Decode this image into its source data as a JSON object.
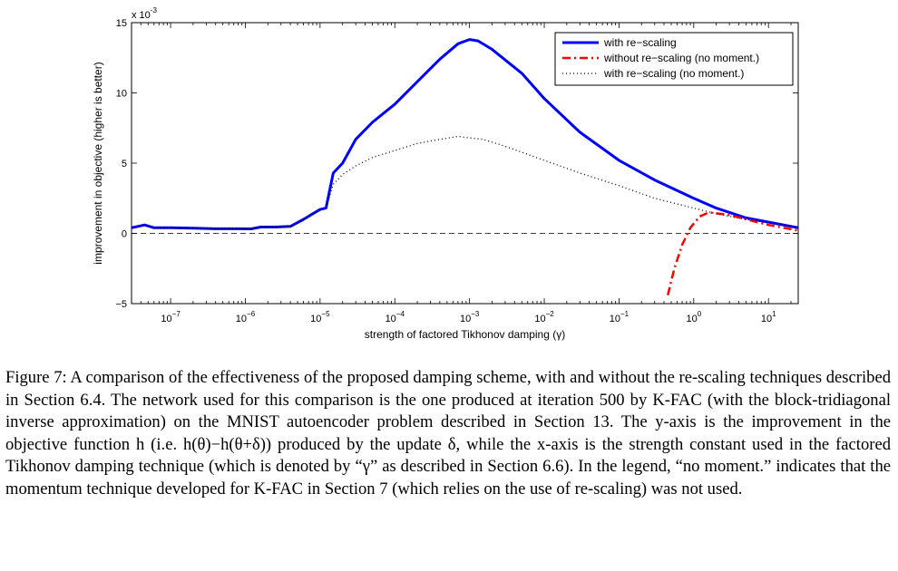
{
  "chart_data": {
    "type": "line",
    "title": "",
    "xlabel": "strength of factored Tikhonov damping (γ)",
    "ylabel": "improvement in objective (higher is better)",
    "x_scale": "log",
    "xlim": [
      3e-08,
      25
    ],
    "ylim": [
      -0.005,
      0.015
    ],
    "y_exponent_label": "x 10",
    "y_exponent_power": "-3",
    "x_ticks": [
      {
        "value": 1e-07,
        "base": "10",
        "exp": "−7"
      },
      {
        "value": 1e-06,
        "base": "10",
        "exp": "−6"
      },
      {
        "value": 1e-05,
        "base": "10",
        "exp": "−5"
      },
      {
        "value": 0.0001,
        "base": "10",
        "exp": "−4"
      },
      {
        "value": 0.001,
        "base": "10",
        "exp": "−3"
      },
      {
        "value": 0.01,
        "base": "10",
        "exp": "−2"
      },
      {
        "value": 0.1,
        "base": "10",
        "exp": "−1"
      },
      {
        "value": 1,
        "base": "10",
        "exp": "0"
      },
      {
        "value": 10,
        "base": "10",
        "exp": "1"
      }
    ],
    "y_ticks": [
      {
        "value": -0.005,
        "label": "−5"
      },
      {
        "value": 0,
        "label": "0"
      },
      {
        "value": 0.005,
        "label": "5"
      },
      {
        "value": 0.01,
        "label": "10"
      },
      {
        "value": 0.015,
        "label": "15"
      }
    ],
    "zero_line": true,
    "legend_position": "top-right",
    "series": [
      {
        "name": "with re−scaling",
        "color": "#0000ff",
        "style": "solid",
        "x": [
          3e-08,
          4.5e-08,
          6e-08,
          1e-07,
          2e-07,
          4e-07,
          8e-07,
          1.2e-06,
          1.6e-06,
          2.5e-06,
          4e-06,
          6e-06,
          8e-06,
          1e-05,
          1.2e-05,
          1.5e-05,
          2e-05,
          3e-05,
          5e-05,
          0.0001,
          0.0002,
          0.0004,
          0.0007,
          0.001,
          0.0013,
          0.002,
          0.005,
          0.01,
          0.03,
          0.1,
          0.3,
          1,
          2,
          5,
          25
        ],
        "y": [
          0.0004,
          0.0006,
          0.0004,
          0.0004,
          0.00037,
          0.00033,
          0.00033,
          0.00032,
          0.00045,
          0.00045,
          0.0005,
          0.001,
          0.0014,
          0.0017,
          0.0018,
          0.0043,
          0.005,
          0.0067,
          0.0079,
          0.0092,
          0.0108,
          0.0124,
          0.0135,
          0.0138,
          0.0137,
          0.0131,
          0.0114,
          0.0096,
          0.0072,
          0.0052,
          0.0038,
          0.0025,
          0.0018,
          0.0011,
          0.0004
        ]
      },
      {
        "name": "without re−scaling (no moment.)",
        "color": "#ff0000",
        "style": "dashdot",
        "x": [
          0.45,
          0.55,
          0.7,
          0.9,
          1.2,
          1.6,
          2.2,
          3,
          5,
          10,
          25
        ],
        "y": [
          -0.0044,
          -0.0025,
          -0.0008,
          0.0004,
          0.0012,
          0.0015,
          0.0014,
          0.0013,
          0.001,
          0.0006,
          0.0002
        ]
      },
      {
        "name": "with re−scaling (no moment.)",
        "color": "#000000",
        "style": "dotted",
        "x": [
          3e-08,
          4.5e-08,
          6e-08,
          1e-07,
          2e-07,
          4e-07,
          8e-07,
          1.2e-06,
          1.6e-06,
          2.5e-06,
          4e-06,
          6e-06,
          8e-06,
          1e-05,
          1.2e-05,
          1.5e-05,
          2e-05,
          3e-05,
          5e-05,
          0.0001,
          0.0002,
          0.0004,
          0.0007,
          0.001,
          0.0015,
          0.003,
          0.01,
          0.03,
          0.1,
          0.3,
          1,
          2,
          5,
          25
        ],
        "y": [
          0.0004,
          0.0006,
          0.0004,
          0.0004,
          0.00037,
          0.00033,
          0.00033,
          0.00032,
          0.00045,
          0.00045,
          0.0005,
          0.001,
          0.0014,
          0.0017,
          0.0018,
          0.0035,
          0.0042,
          0.0048,
          0.0054,
          0.0059,
          0.0064,
          0.0067,
          0.0069,
          0.0068,
          0.0067,
          0.0062,
          0.0052,
          0.0043,
          0.0034,
          0.0025,
          0.0018,
          0.0014,
          0.001,
          0.0004
        ]
      }
    ]
  },
  "caption": {
    "label": "Figure 7:",
    "text": "A comparison of the effectiveness of the proposed damping scheme, with and without the re-scaling techniques described in Section 6.4. The network used for this comparison is the one produced at iteration 500 by K-FAC (with the block-tridiagonal inverse approximation) on the MNIST autoencoder problem described in Section 13. The y-axis is the improvement in the objective function h (i.e. h(θ)−h(θ+δ)) produced by the update δ, while the x-axis is the strength constant used in the factored Tikhonov damping technique (which is denoted by “γ” as described in Section 6.6). In the legend, “no moment.” indicates that the momentum technique developed for K-FAC in Section 7 (which relies on the use of re-scaling) was not used."
  }
}
